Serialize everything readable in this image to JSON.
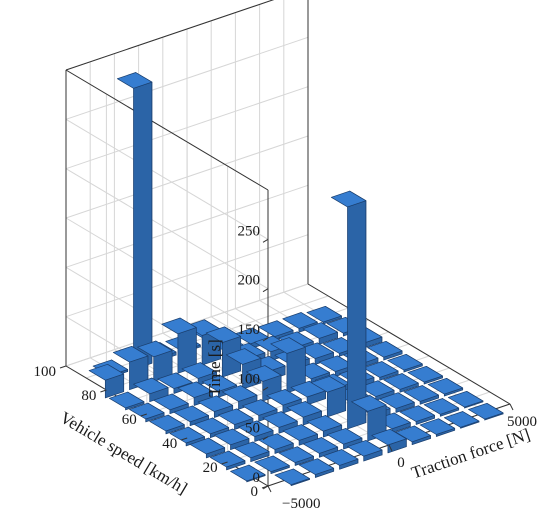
{
  "chart_data": {
    "type": "bar3d",
    "title": "",
    "xlabel": "Traction force [N]",
    "ylabel": "Vehicle speed [km/h]",
    "zlabel": "Time [s]",
    "x_ticks": [
      "−5000",
      "0",
      "5000"
    ],
    "x_tick_values": [
      -5000,
      0,
      5000
    ],
    "y_ticks": [
      "0",
      "20",
      "40",
      "60",
      "80",
      "100"
    ],
    "y_tick_values": [
      0,
      20,
      40,
      60,
      80,
      100
    ],
    "z_ticks": [
      "0",
      "50",
      "100",
      "150",
      "200",
      "250"
    ],
    "z_tick_values": [
      0,
      50,
      100,
      150,
      200,
      250
    ],
    "zlim": [
      0,
      300
    ],
    "grid": true,
    "bar_color": "#2f6db5",
    "force_bins": [
      -5000,
      -4000,
      -3000,
      -2000,
      -1000,
      0,
      1000,
      2000,
      3000,
      4000,
      5000
    ],
    "speed_bins": [
      0,
      10,
      20,
      30,
      40,
      50,
      60,
      70,
      80,
      90,
      100
    ],
    "values": [
      [
        0,
        1,
        3,
        4,
        5,
        8,
        3,
        2,
        1,
        1,
        0
      ],
      [
        1,
        2,
        3,
        4,
        5,
        30,
        4,
        3,
        2,
        1,
        0
      ],
      [
        3,
        4,
        4,
        5,
        6,
        225,
        6,
        4,
        3,
        2,
        0
      ],
      [
        4,
        5,
        5,
        6,
        8,
        25,
        6,
        4,
        3,
        2,
        0
      ],
      [
        3,
        4,
        5,
        6,
        8,
        8,
        7,
        5,
        3,
        2,
        0
      ],
      [
        3,
        4,
        6,
        8,
        20,
        40,
        6,
        5,
        4,
        3,
        0
      ],
      [
        3,
        4,
        8,
        6,
        25,
        9,
        8,
        6,
        3,
        5,
        0
      ],
      [
        2,
        8,
        5,
        7,
        35,
        10,
        9,
        5,
        6,
        3,
        0
      ],
      [
        18,
        28,
        25,
        40,
        30,
        5,
        5,
        4,
        4,
        2,
        0
      ],
      [
        0,
        2,
        285,
        3,
        2,
        5,
        0,
        0,
        0,
        0,
        0
      ],
      [
        0,
        0,
        0,
        0,
        0,
        0,
        0,
        0,
        0,
        0,
        0
      ]
    ]
  }
}
